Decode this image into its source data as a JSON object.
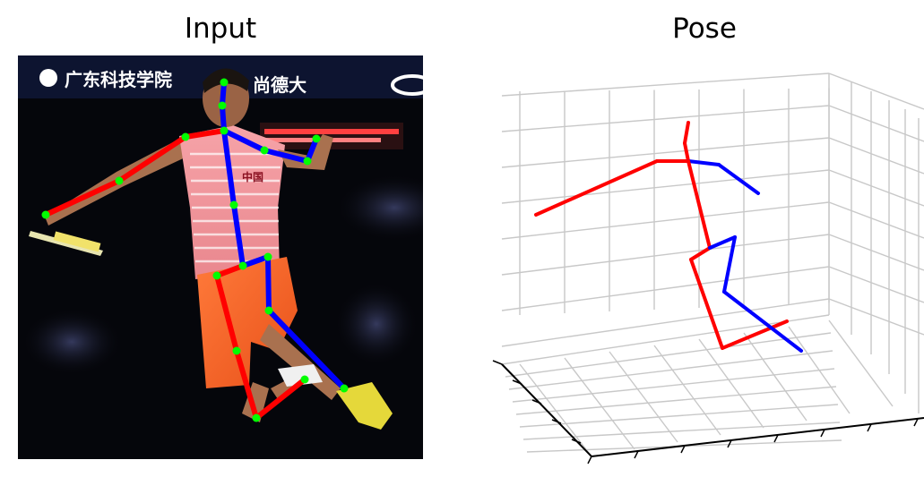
{
  "panels": {
    "input": {
      "title": "Input"
    },
    "pose": {
      "title": "Pose"
    }
  },
  "photo": {
    "banner_text_left": "广东科技学院",
    "banner_text_right": "尚德大",
    "jersey_text": "中国"
  },
  "skeleton": {
    "colors": {
      "left": "#ff0000",
      "right": "#0000ff",
      "joint": "#00ff00"
    },
    "legend": []
  },
  "pose3d": {
    "grid": true,
    "line_color": "#c8c8c8",
    "axis_color": "#000000"
  }
}
